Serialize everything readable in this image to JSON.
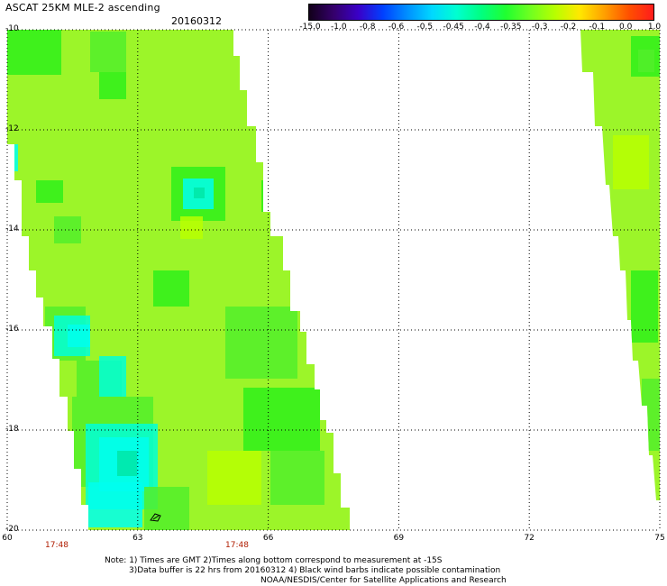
{
  "header": {
    "title": "ASCAT 25KM MLE-2 ascending",
    "date": "20160312"
  },
  "colorbar": {
    "labels": [
      "-15.0",
      "-1.0",
      "-0.8",
      "-0.6",
      "-0.5",
      "-0.45",
      "-0.4",
      "-0.35",
      "-0.3",
      "-0.2",
      "-0.1",
      "0.0",
      "1.0"
    ],
    "colors": [
      "#12001a",
      "#35006b",
      "#3a00c8",
      "#0040ff",
      "#0090ff",
      "#00d8ff",
      "#00ffd0",
      "#00ff80",
      "#20ff30",
      "#70ff20",
      "#b8ff00",
      "#ffe800",
      "#ffa000",
      "#ff5000",
      "#ff1c1c"
    ]
  },
  "map": {
    "lat_labels": [
      "-10",
      "-12",
      "-14",
      "-16",
      "-18",
      "-20"
    ],
    "lon_labels": [
      "60",
      "63",
      "66",
      "69",
      "72",
      "75"
    ],
    "lat_range": [
      -20,
      -10
    ],
    "lon_range": [
      60,
      75
    ],
    "times": [
      "17:48",
      "17:48"
    ],
    "colors": {
      "base": "#9cf529",
      "light": "#b8ff00",
      "green": "#2ff01a",
      "midgreen": "#52ee2a",
      "cyan": "#00ffd8",
      "aqua": "#00ffee",
      "teal": "#00e6a6",
      "blue": "#0090ff",
      "gridline": "#000000"
    }
  },
  "notes": {
    "line1": "Note: 1) Times are GMT 2)Times along bottom correspond to measurement at -15S",
    "line2": "3)Data buffer is 22 hrs from 20160312 4) Black wind barbs indicate possible contamination",
    "line3": "NOAA/NESDIS/Center for Satellite Applications and Research"
  }
}
